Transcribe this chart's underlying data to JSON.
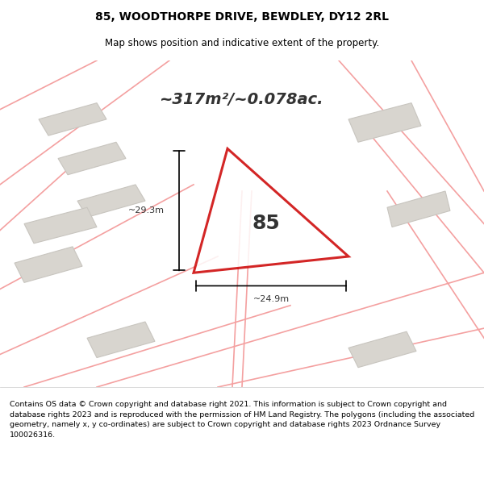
{
  "title_line1": "85, WOODTHORPE DRIVE, BEWDLEY, DY12 2RL",
  "title_line2": "Map shows position and indicative extent of the property.",
  "area_label": "~317m²/~0.078ac.",
  "property_number": "85",
  "dim_vertical": "~29.3m",
  "dim_horizontal": "~24.9m",
  "footer_text": "Contains OS data © Crown copyright and database right 2021. This information is subject to Crown copyright and database rights 2023 and is reproduced with the permission of HM Land Registry. The polygons (including the associated geometry, namely x, y co-ordinates) are subject to Crown copyright and database rights 2023 Ordnance Survey 100026316.",
  "bg_color": "#f0ede8",
  "map_bg": "#f7f5f2",
  "property_fill": "#f7f5f2",
  "property_edge": "#cc0000",
  "other_lines_color": "#f4a0a0",
  "building_fill": "#d8d5cf",
  "building_edge": "#c8c5bf"
}
